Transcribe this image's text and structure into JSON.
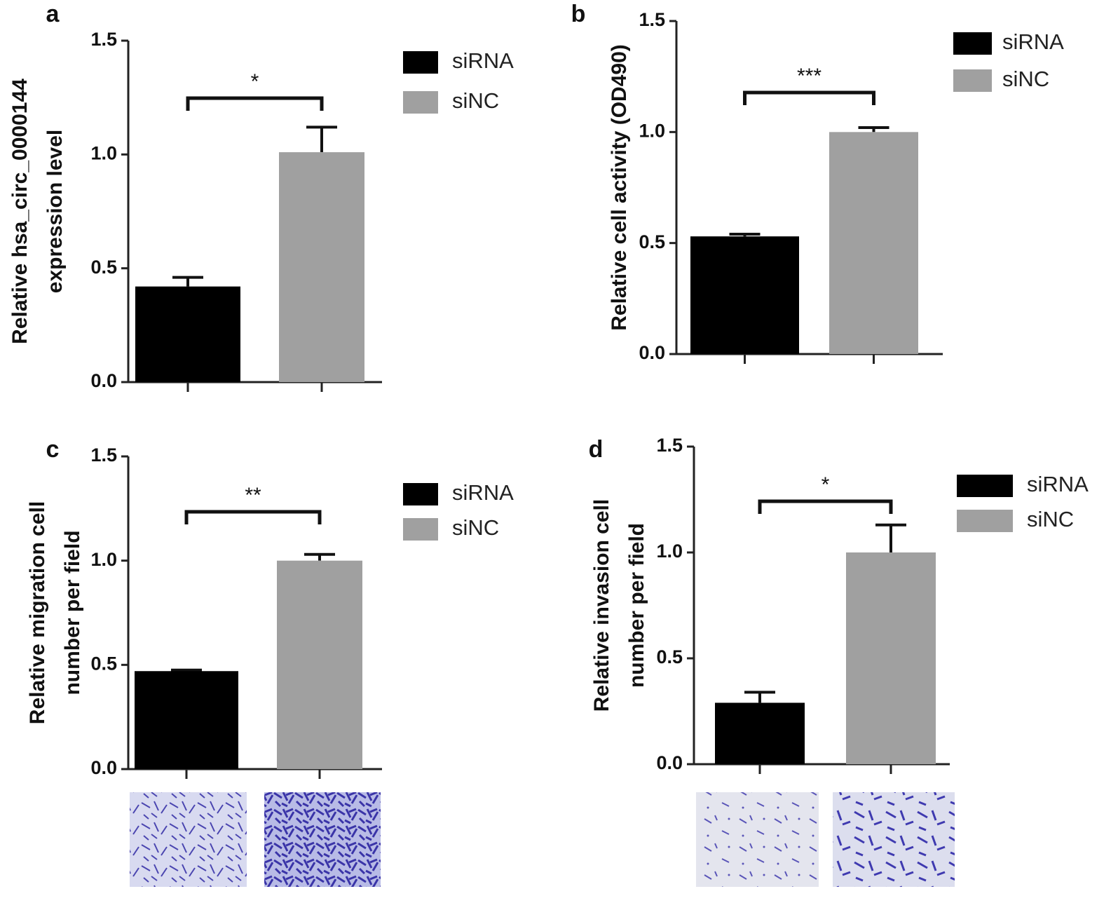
{
  "chart_data": [
    {
      "type": "bar",
      "panel_label": "a",
      "y_label": [
        "Relative hsa_circ_0000144",
        "expression level"
      ],
      "series": [
        {
          "name": "siRNA",
          "color": "#000000",
          "values": [
            0.42
          ],
          "errors": [
            0.04
          ]
        },
        {
          "name": "siNC",
          "color": "#a0a0a0",
          "values": [
            1.01
          ],
          "errors": [
            0.11
          ]
        }
      ],
      "annotation": "*",
      "ylim": [
        0,
        1.5
      ],
      "yticks": [
        {
          "value": 0,
          "label": "0.0"
        },
        0.5,
        {
          "value": 1,
          "label": "1.0"
        },
        1.5
      ]
    },
    {
      "type": "bar",
      "panel_label": "b",
      "y_label": [
        "Relative cell activity (OD490)"
      ],
      "series": [
        {
          "name": "siRNA",
          "color": "#000000",
          "values": [
            0.53
          ],
          "errors": [
            0.01
          ]
        },
        {
          "name": "siNC",
          "color": "#a0a0a0",
          "values": [
            1.0
          ],
          "errors": [
            0.02
          ]
        }
      ],
      "annotation": "***",
      "ylim": [
        0,
        1.5
      ],
      "yticks": [
        {
          "value": 0,
          "label": "0.0"
        },
        0.5,
        {
          "value": 1,
          "label": "1.0"
        },
        1.5
      ]
    },
    {
      "type": "bar",
      "panel_label": "c",
      "y_label": [
        "Relative migration cell",
        "number per field"
      ],
      "series": [
        {
          "name": "siRNA",
          "color": "#000000",
          "values": [
            0.47
          ],
          "errors": [
            0.005
          ]
        },
        {
          "name": "siNC",
          "color": "#a0a0a0",
          "values": [
            1.0
          ],
          "errors": [
            0.03
          ]
        }
      ],
      "annotation": "**",
      "ylim": [
        0,
        1.5
      ],
      "yticks": [
        {
          "value": 0,
          "label": "0.0"
        },
        0.5,
        {
          "value": 1,
          "label": "1.0"
        },
        1.5
      ]
    },
    {
      "type": "bar",
      "panel_label": "d",
      "y_label": [
        "Relative invasion cell",
        "number per field"
      ],
      "series": [
        {
          "name": "siRNA",
          "color": "#000000",
          "values": [
            0.29
          ],
          "errors": [
            0.05
          ]
        },
        {
          "name": "siNC",
          "color": "#a0a0a0",
          "values": [
            1.0
          ],
          "errors": [
            0.13
          ]
        }
      ],
      "annotation": "*",
      "ylim": [
        0,
        1.5
      ],
      "yticks": [
        {
          "value": 0,
          "label": "0.0"
        },
        0.5,
        {
          "value": 1,
          "label": "1.0"
        },
        1.5
      ]
    }
  ]
}
